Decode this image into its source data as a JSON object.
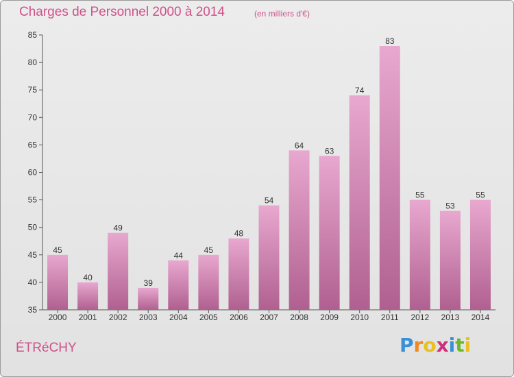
{
  "header": {
    "title": "Charges de Personnel 2000 à 2014",
    "subtitle": "(en milliers d'€)"
  },
  "footer": {
    "city": "ÉTRéCHY",
    "brand": "Proxiti",
    "brand_letters": [
      "P",
      "r",
      "o",
      "x",
      "i",
      "t",
      "i"
    ],
    "brand_colors": [
      "#3a8fd8",
      "#f08a1c",
      "#e8c020",
      "#d0307a",
      "#3a8fd8",
      "#6cb82c",
      "#e8c020"
    ]
  },
  "colors": {
    "bar_top": "#e8a8cf",
    "bar_bottom": "#b06090",
    "text_accent": "#d0508a"
  },
  "chart_data": {
    "type": "bar",
    "title": "Charges de Personnel 2000 à 2014",
    "subtitle": "(en milliers d'€)",
    "categories": [
      "2000",
      "2001",
      "2002",
      "2003",
      "2004",
      "2005",
      "2006",
      "2007",
      "2008",
      "2009",
      "2010",
      "2011",
      "2012",
      "2013",
      "2014"
    ],
    "values": [
      45,
      40,
      49,
      39,
      44,
      45,
      48,
      54,
      64,
      63,
      74,
      83,
      55,
      53,
      55
    ],
    "ylim": [
      35,
      85
    ],
    "yticks": [
      35,
      40,
      45,
      50,
      55,
      60,
      65,
      70,
      75,
      80,
      85
    ],
    "grid": false,
    "show_value_labels": true
  }
}
